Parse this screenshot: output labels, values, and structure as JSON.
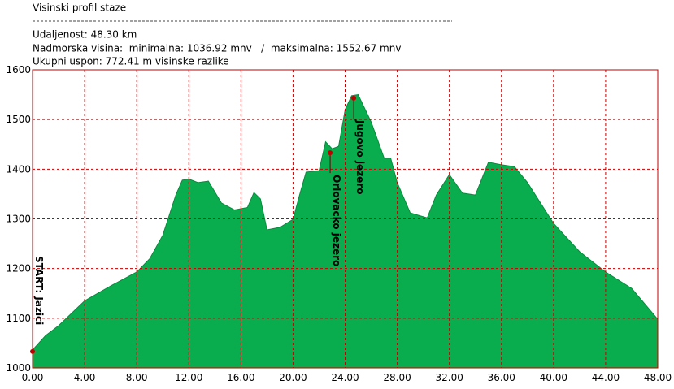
{
  "header": {
    "title": "Visinski profil staze",
    "distance": "Udaljenost: 48.30 km",
    "altitude": "Nadmorska visina:  minimalna: 1036.92 mnv   /  maksimalna: 1552.67 mnv",
    "ascent": "Ukupni uspon: 772.41 m visinske razlike"
  },
  "chart_data": {
    "type": "area",
    "color": "#0aad4e",
    "grid": true,
    "x": [
      0,
      1,
      2,
      4,
      6,
      8,
      9,
      10,
      11,
      11.5,
      12,
      12.7,
      13.5,
      14.5,
      15.5,
      16.5,
      17,
      17.5,
      18,
      19,
      20,
      20.5,
      21,
      22,
      22.5,
      23,
      23.5,
      24,
      24.5,
      25,
      26,
      27,
      27.5,
      28,
      29,
      30.3,
      31,
      32,
      33,
      34,
      35,
      36,
      37,
      38,
      40,
      42,
      44,
      46,
      48
    ],
    "values": [
      1036,
      1065,
      1085,
      1135,
      1165,
      1193,
      1220,
      1267,
      1348,
      1378,
      1380,
      1373,
      1376,
      1332,
      1318,
      1323,
      1353,
      1340,
      1278,
      1283,
      1299,
      1348,
      1394,
      1397,
      1455,
      1441,
      1446,
      1520,
      1548,
      1550,
      1495,
      1422,
      1422,
      1373,
      1312,
      1302,
      1348,
      1389,
      1352,
      1348,
      1414,
      1409,
      1405,
      1373,
      1291,
      1234,
      1193,
      1160,
      1098
    ],
    "xlim": [
      0,
      48
    ],
    "ylim": [
      1000,
      1600
    ],
    "xticks": [
      {
        "value": 0,
        "label": "0.00"
      },
      {
        "value": 4,
        "label": "4.00"
      },
      {
        "value": 8,
        "label": "8.00"
      },
      {
        "value": 12,
        "label": "12.00"
      },
      {
        "value": 16,
        "label": "16.00"
      },
      {
        "value": 20,
        "label": "20.00"
      },
      {
        "value": 24,
        "label": "24.00"
      },
      {
        "value": 28,
        "label": "28.00"
      },
      {
        "value": 32,
        "label": "32.00"
      },
      {
        "value": 36,
        "label": "36.00"
      },
      {
        "value": 40,
        "label": "40.00"
      },
      {
        "value": 44,
        "label": "44.00"
      },
      {
        "value": 48,
        "label": "48.00"
      }
    ],
    "yticks": [
      1000,
      1100,
      1200,
      1300,
      1400,
      1500,
      1600
    ],
    "annotations": [
      {
        "text": "START: Jazici",
        "x": 0,
        "y": 1033
      },
      {
        "text": "Orlovacko jezero",
        "x": 22.85,
        "y": 1433
      },
      {
        "text": "Jugovo jezero",
        "x": 24.66,
        "y": 1543
      }
    ]
  }
}
